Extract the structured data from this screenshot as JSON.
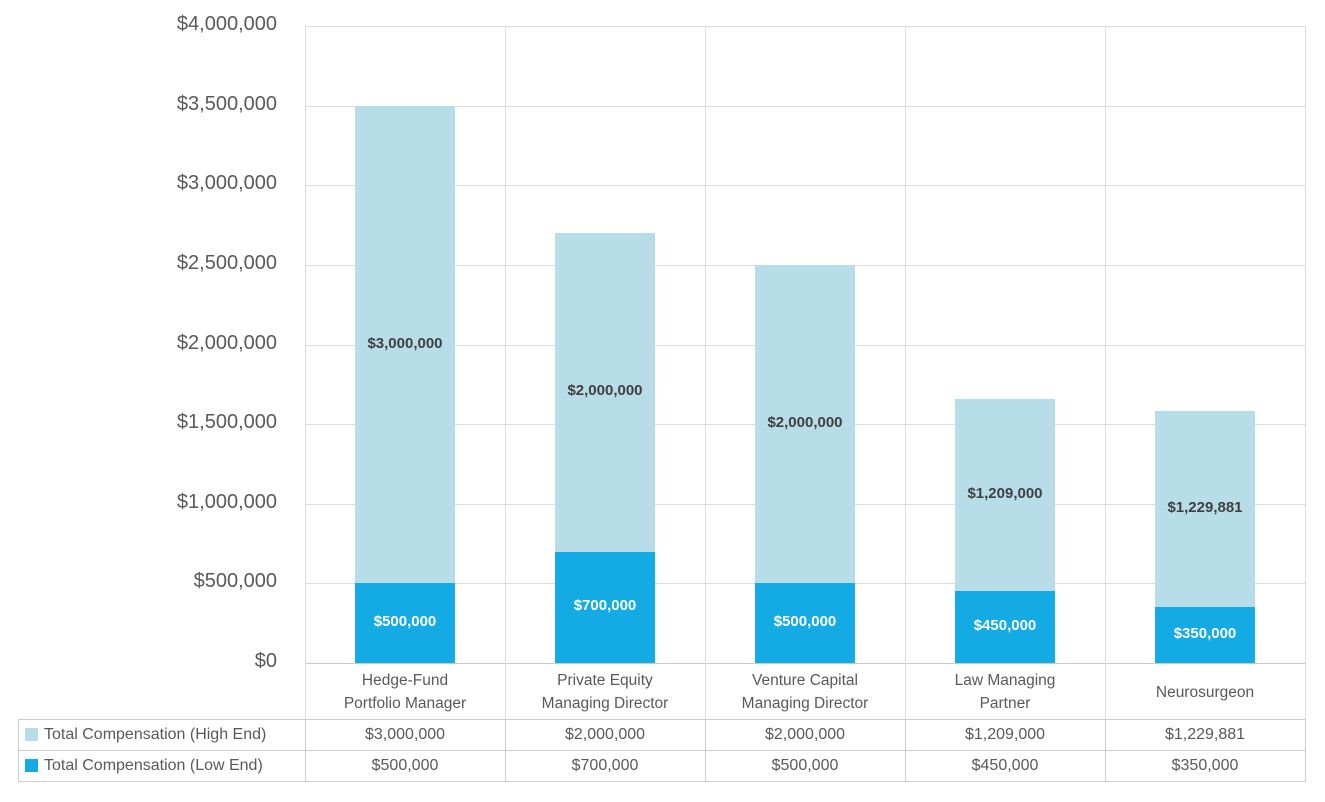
{
  "chart_data": {
    "type": "bar",
    "stacked": true,
    "title": "",
    "xlabel": "",
    "ylabel": "",
    "grid": true,
    "legend_position": "table-left-column",
    "categories": [
      "Hedge-Fund\nPortfolio Manager",
      "Private Equity\nManaging Director",
      "Venture Capital\nManaging Director",
      "Law Managing\nPartner",
      "Neurosurgeon"
    ],
    "series": [
      {
        "name": "Total Compensation (Low End)",
        "color": "#14aae3",
        "label_color": "#ffffff",
        "values": [
          500000,
          700000,
          500000,
          450000,
          350000
        ],
        "data_labels": [
          "$500,000",
          "$700,000",
          "$500,000",
          "$450,000",
          "$350,000"
        ]
      },
      {
        "name": "Total Compensation (High End)",
        "color": "#b7dde9",
        "label_color": "#404040",
        "values": [
          3000000,
          2000000,
          2000000,
          1209000,
          1229881
        ],
        "data_labels": [
          "$3,000,000",
          "$2,000,000",
          "$2,000,000",
          "$1,209,000",
          "$1,229,881"
        ]
      }
    ],
    "y_axis": {
      "min": 0,
      "max": 4000000,
      "step": 500000,
      "tick_labels_top_to_bottom": [
        "$4,000,000",
        "$3,500,000",
        "$3,000,000",
        "$2,500,000",
        "$2,000,000",
        "$1,500,000",
        "$1,000,000",
        "$500,000",
        "$0"
      ]
    }
  },
  "data_table": {
    "rows": [
      {
        "legend": "Total Compensation (High End)",
        "swatch_color": "#b7dde9",
        "values": [
          "$3,000,000",
          "$2,000,000",
          "$2,000,000",
          "$1,209,000",
          "$1,229,881"
        ]
      },
      {
        "legend": "Total Compensation (Low End)",
        "swatch_color": "#14aae3",
        "values": [
          "$500,000",
          "$700,000",
          "$500,000",
          "$450,000",
          "$350,000"
        ]
      }
    ]
  },
  "colors": {
    "gridline": "#dcdcdc",
    "axis_line": "#c8c8c8",
    "table_border": "#cccccc",
    "axis_text": "#595959",
    "dark_label": "#404040",
    "white_label": "#ffffff"
  }
}
